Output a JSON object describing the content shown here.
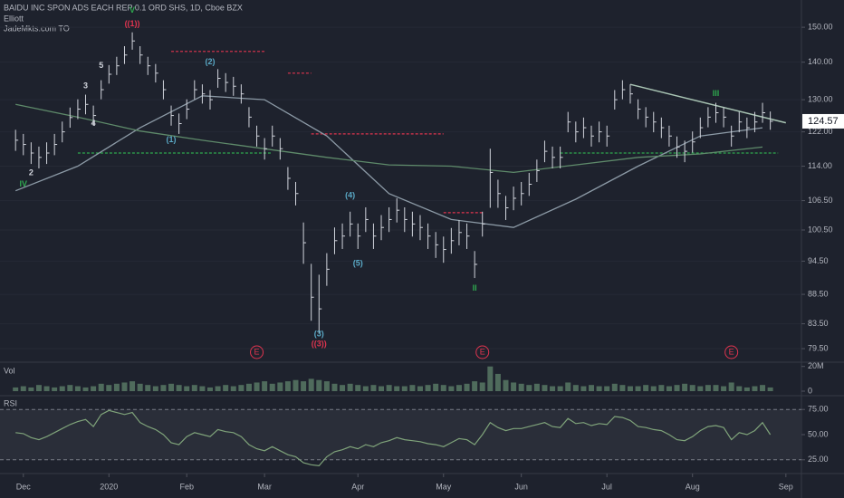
{
  "chart_data": [
    {
      "type": "ohlc",
      "title": "BAIDU INC SPON ADS EACH REP 0.1 ORD SHS, 1D, Cboe BZX",
      "indicator": "Elliott",
      "author": "JadeMkts.com TO",
      "color": "#d1d4dc",
      "yscale": "log",
      "xlim": [
        -2,
        101
      ],
      "ylim": [
        77.4,
        158.3
      ],
      "yticks": [
        {
          "value": 150,
          "label": "150.00"
        },
        {
          "value": 140,
          "label": "140.00"
        },
        {
          "value": 130,
          "label": "130.00"
        },
        {
          "value": 122,
          "label": "122.00"
        },
        {
          "value": 114,
          "label": "114.00"
        },
        {
          "value": 106.5,
          "label": "106.50"
        },
        {
          "value": 100.5,
          "label": "100.50"
        },
        {
          "value": 94.5,
          "label": "94.50"
        },
        {
          "value": 88.5,
          "label": "88.50"
        },
        {
          "value": 83.5,
          "label": "83.50"
        },
        {
          "value": 79.5,
          "label": "79.50"
        }
      ],
      "high": [
        122.5,
        121.5,
        119.5,
        118.5,
        119.5,
        121.5,
        124.5,
        128,
        130.1,
        131.3,
        128.5,
        135.1,
        139.2,
        141.5,
        144.5,
        148.5,
        144.5,
        141.5,
        139.5,
        135.1,
        128.5,
        126.5,
        130.1,
        135.1,
        134,
        132.5,
        138.1,
        137,
        136,
        134,
        128.1,
        123.5,
        120.5,
        123.5,
        120.5,
        113.8,
        110.5,
        102,
        94,
        92,
        96,
        101,
        101.8,
        104.2,
        101.8,
        105.1,
        101.8,
        103.5,
        105.1,
        107,
        105.1,
        104.2,
        103.5,
        101.8,
        100.1,
        99.2,
        100.9,
        102.5,
        101.8,
        96.4,
        104.2,
        118,
        111,
        107.5,
        109.5,
        110.5,
        112.5,
        115.5,
        119.9,
        118.5,
        118.5,
        126.9,
        124.5,
        125.5,
        123.5,
        124.5,
        123.5,
        132.5,
        135.1,
        134,
        130.1,
        128.1,
        126.9,
        125.5,
        123.5,
        120.9,
        119.9,
        122.1,
        125.5,
        128.1,
        129.2,
        128.1,
        123.5,
        126.9,
        125.5,
        126.9,
        129.2,
        127
      ],
      "low": [
        117.5,
        116.5,
        114.5,
        113.5,
        114.5,
        116.5,
        119.5,
        123,
        125.1,
        126.3,
        123.5,
        130.1,
        134.2,
        136.5,
        139.5,
        143.5,
        139.5,
        136.5,
        134.5,
        130.1,
        123.5,
        121.5,
        125.1,
        130.1,
        129,
        127.5,
        133.1,
        132,
        131,
        129,
        123.1,
        118.5,
        115.5,
        118.5,
        115.5,
        108.8,
        105.5,
        94,
        84,
        82,
        90,
        95.8,
        96.8,
        99.2,
        96.8,
        100.1,
        96.8,
        98.5,
        100.1,
        102,
        100.1,
        99.2,
        98.5,
        96.8,
        95.1,
        94.2,
        95.9,
        97.5,
        96.8,
        91.4,
        99.2,
        105,
        105,
        102.5,
        104.5,
        105.5,
        107.5,
        110.5,
        114.9,
        113.5,
        113.5,
        121.9,
        119.5,
        120.5,
        118.5,
        119.5,
        118.5,
        127.5,
        130.1,
        129,
        125.1,
        123.1,
        121.9,
        120.5,
        118.5,
        115.9,
        114.9,
        117.1,
        120.5,
        123.1,
        124.2,
        123.1,
        118.5,
        121.9,
        120.5,
        121.9,
        124.2,
        122.5
      ],
      "close": [
        120,
        119,
        117,
        116,
        117,
        119,
        122,
        125.5,
        127.6,
        128.8,
        126,
        132.6,
        136.7,
        139,
        142,
        146,
        142,
        139,
        137,
        132.6,
        126,
        124,
        127.6,
        132.6,
        131.5,
        130,
        135.6,
        134.5,
        133.5,
        131.5,
        125.6,
        121,
        118,
        121,
        118,
        111.3,
        108,
        98,
        88,
        86,
        93,
        98.4,
        99.3,
        101.7,
        99.3,
        102.6,
        99.3,
        101,
        102.6,
        104.5,
        102.6,
        101.7,
        101,
        99.3,
        97.6,
        96.7,
        98.4,
        100,
        99.3,
        93.9,
        101.7,
        112.6,
        108,
        105,
        107,
        108,
        110,
        113,
        117.4,
        116,
        116,
        124.4,
        122,
        123,
        121,
        122,
        121,
        130,
        132.6,
        131.5,
        127.6,
        125.6,
        124.4,
        123,
        121,
        118.4,
        117.4,
        119.6,
        123,
        125.6,
        126.7,
        125.6,
        121,
        124.4,
        123,
        124.4,
        126.7,
        124.57
      ],
      "series": [
        {
          "color": "#8c9aa6",
          "x": [
            0,
            8,
            16,
            24,
            32,
            40,
            48,
            56,
            64,
            72,
            80,
            88,
            96
          ],
          "values": [
            108.6,
            114,
            123,
            131,
            130,
            121,
            108,
            102.6,
            101,
            106.8,
            114,
            121,
            123
          ]
        },
        {
          "color": "#5e8a6a",
          "x": [
            0,
            8,
            16,
            24,
            32,
            40,
            48,
            56,
            64,
            72,
            80,
            88,
            96
          ],
          "values": [
            128.8,
            125.6,
            122.2,
            120,
            118,
            116,
            114.3,
            114,
            112.6,
            114.3,
            116,
            116.8,
            118.4
          ]
        }
      ],
      "levels": [
        {
          "value": 143,
          "x": [
            20,
            32
          ],
          "color": "#e0344f"
        },
        {
          "value": 137,
          "x": [
            35,
            38
          ],
          "color": "#e0344f"
        },
        {
          "value": 121.5,
          "x": [
            38,
            55
          ],
          "color": "#e0344f"
        },
        {
          "value": 104,
          "x": [
            55,
            60
          ],
          "color": "#e0344f"
        },
        {
          "value": 117,
          "x": [
            8,
            33
          ],
          "color": "#2fa84f"
        },
        {
          "value": 117,
          "x": [
            70,
            98
          ],
          "color": "#2fa84f"
        }
      ],
      "trendlines": [
        {
          "x": [
            79,
            99
          ],
          "y": [
            134,
            124.2
          ],
          "color": "#a9c5b4"
        }
      ],
      "annotations": [
        {
          "text": "((1))",
          "x": 15,
          "y": 151,
          "color": "#e0344f"
        },
        {
          "text": "V",
          "x": 15,
          "y": 155,
          "color": "#2fa84f"
        },
        {
          "text": "5",
          "x": 11,
          "y": 139,
          "color": "#d1d4dc"
        },
        {
          "text": "3",
          "x": 9,
          "y": 133.5,
          "color": "#d1d4dc"
        },
        {
          "text": "4",
          "x": 10,
          "y": 124,
          "color": "#d1d4dc"
        },
        {
          "text": "2",
          "x": 2,
          "y": 112.5,
          "color": "#d1d4dc"
        },
        {
          "text": "IV",
          "x": 1,
          "y": 110,
          "color": "#2fa84f"
        },
        {
          "text": "(2)",
          "x": 25,
          "y": 140,
          "color": "#5aa9c6"
        },
        {
          "text": "(1)",
          "x": 20,
          "y": 120,
          "color": "#5aa9c6"
        },
        {
          "text": "(4)",
          "x": 43,
          "y": 107.5,
          "color": "#5aa9c6"
        },
        {
          "text": "(5)",
          "x": 44,
          "y": 94,
          "color": "#5aa9c6"
        },
        {
          "text": "(3)",
          "x": 39,
          "y": 81.8,
          "color": "#5aa9c6"
        },
        {
          "text": "((3))",
          "x": 39,
          "y": 80.2,
          "color": "#e0344f"
        },
        {
          "text": "II",
          "x": 59,
          "y": 89.5,
          "color": "#2fa84f"
        },
        {
          "text": "III",
          "x": 90,
          "y": 131.5,
          "color": "#2fa84f"
        }
      ],
      "events": [
        {
          "text": "E",
          "x": 31
        },
        {
          "text": "E",
          "x": 60
        },
        {
          "text": "E",
          "x": 92
        }
      ]
    },
    {
      "type": "bar",
      "title": "Vol",
      "color": "#4f6b5c",
      "xlim": [
        -2,
        101
      ],
      "ylim": [
        0,
        22000000
      ],
      "yticks": [
        {
          "value": 20000000,
          "label": "20M"
        },
        0
      ],
      "values": [
        3000000,
        4000000,
        3000000,
        5000000,
        4000000,
        3000000,
        4000000,
        5000000,
        4000000,
        3000000,
        4000000,
        6000000,
        5000000,
        6000000,
        7000000,
        8000000,
        6000000,
        5000000,
        4000000,
        5000000,
        6000000,
        5000000,
        4000000,
        5000000,
        4000000,
        3000000,
        4000000,
        5000000,
        4000000,
        5000000,
        6000000,
        7000000,
        8000000,
        6000000,
        7000000,
        8000000,
        9000000,
        8000000,
        10000000,
        9000000,
        8000000,
        6000000,
        5000000,
        6000000,
        5000000,
        4000000,
        5000000,
        4000000,
        5000000,
        4000000,
        4000000,
        5000000,
        4000000,
        5000000,
        6000000,
        5000000,
        4000000,
        5000000,
        6000000,
        8000000,
        7000000,
        20000000,
        14000000,
        9000000,
        7000000,
        6000000,
        5000000,
        6000000,
        5000000,
        4000000,
        4000000,
        7000000,
        5000000,
        4000000,
        5000000,
        4000000,
        4000000,
        6000000,
        5000000,
        4000000,
        4000000,
        5000000,
        4000000,
        5000000,
        4000000,
        5000000,
        6000000,
        5000000,
        4000000,
        5000000,
        5000000,
        4000000,
        7000000,
        4000000,
        3000000,
        4000000,
        5000000,
        3000000
      ]
    },
    {
      "type": "line",
      "title": "RSI",
      "color": "#7fa37a",
      "xlim": [
        -2,
        101
      ],
      "ylim": [
        14,
        86
      ],
      "yticks": [
        {
          "value": 75,
          "label": "75.00"
        },
        {
          "value": 50,
          "label": "50.00"
        },
        {
          "value": 25,
          "label": "25.00"
        }
      ],
      "xticks": [
        {
          "value": 1,
          "label": "Dec"
        },
        {
          "value": 12,
          "label": "2020"
        },
        {
          "value": 22,
          "label": "Feb"
        },
        {
          "value": 32,
          "label": "Mar"
        },
        {
          "value": 44,
          "label": "Apr"
        },
        {
          "value": 55,
          "label": "May"
        },
        {
          "value": 65,
          "label": "Jun"
        },
        {
          "value": 76,
          "label": "Jul"
        },
        {
          "value": 87,
          "label": "Aug"
        },
        {
          "value": 99,
          "label": "Sep"
        }
      ],
      "values": [
        52,
        51,
        47,
        45,
        48,
        52,
        56,
        60,
        63,
        65,
        58,
        70,
        74,
        72,
        70,
        72,
        62,
        58,
        55,
        50,
        42,
        40,
        48,
        52,
        50,
        48,
        55,
        53,
        52,
        48,
        40,
        36,
        34,
        38,
        34,
        30,
        28,
        22,
        20,
        19,
        28,
        33,
        35,
        38,
        36,
        40,
        38,
        42,
        44,
        47,
        45,
        44,
        43,
        41,
        40,
        38,
        42,
        46,
        45,
        40,
        50,
        62,
        57,
        54,
        56,
        56,
        58,
        60,
        62,
        58,
        57,
        66,
        61,
        62,
        59,
        61,
        60,
        68,
        67,
        64,
        58,
        57,
        55,
        54,
        50,
        45,
        44,
        48,
        54,
        58,
        59,
        57,
        45,
        52,
        50,
        54,
        62,
        50
      ]
    }
  ]
}
